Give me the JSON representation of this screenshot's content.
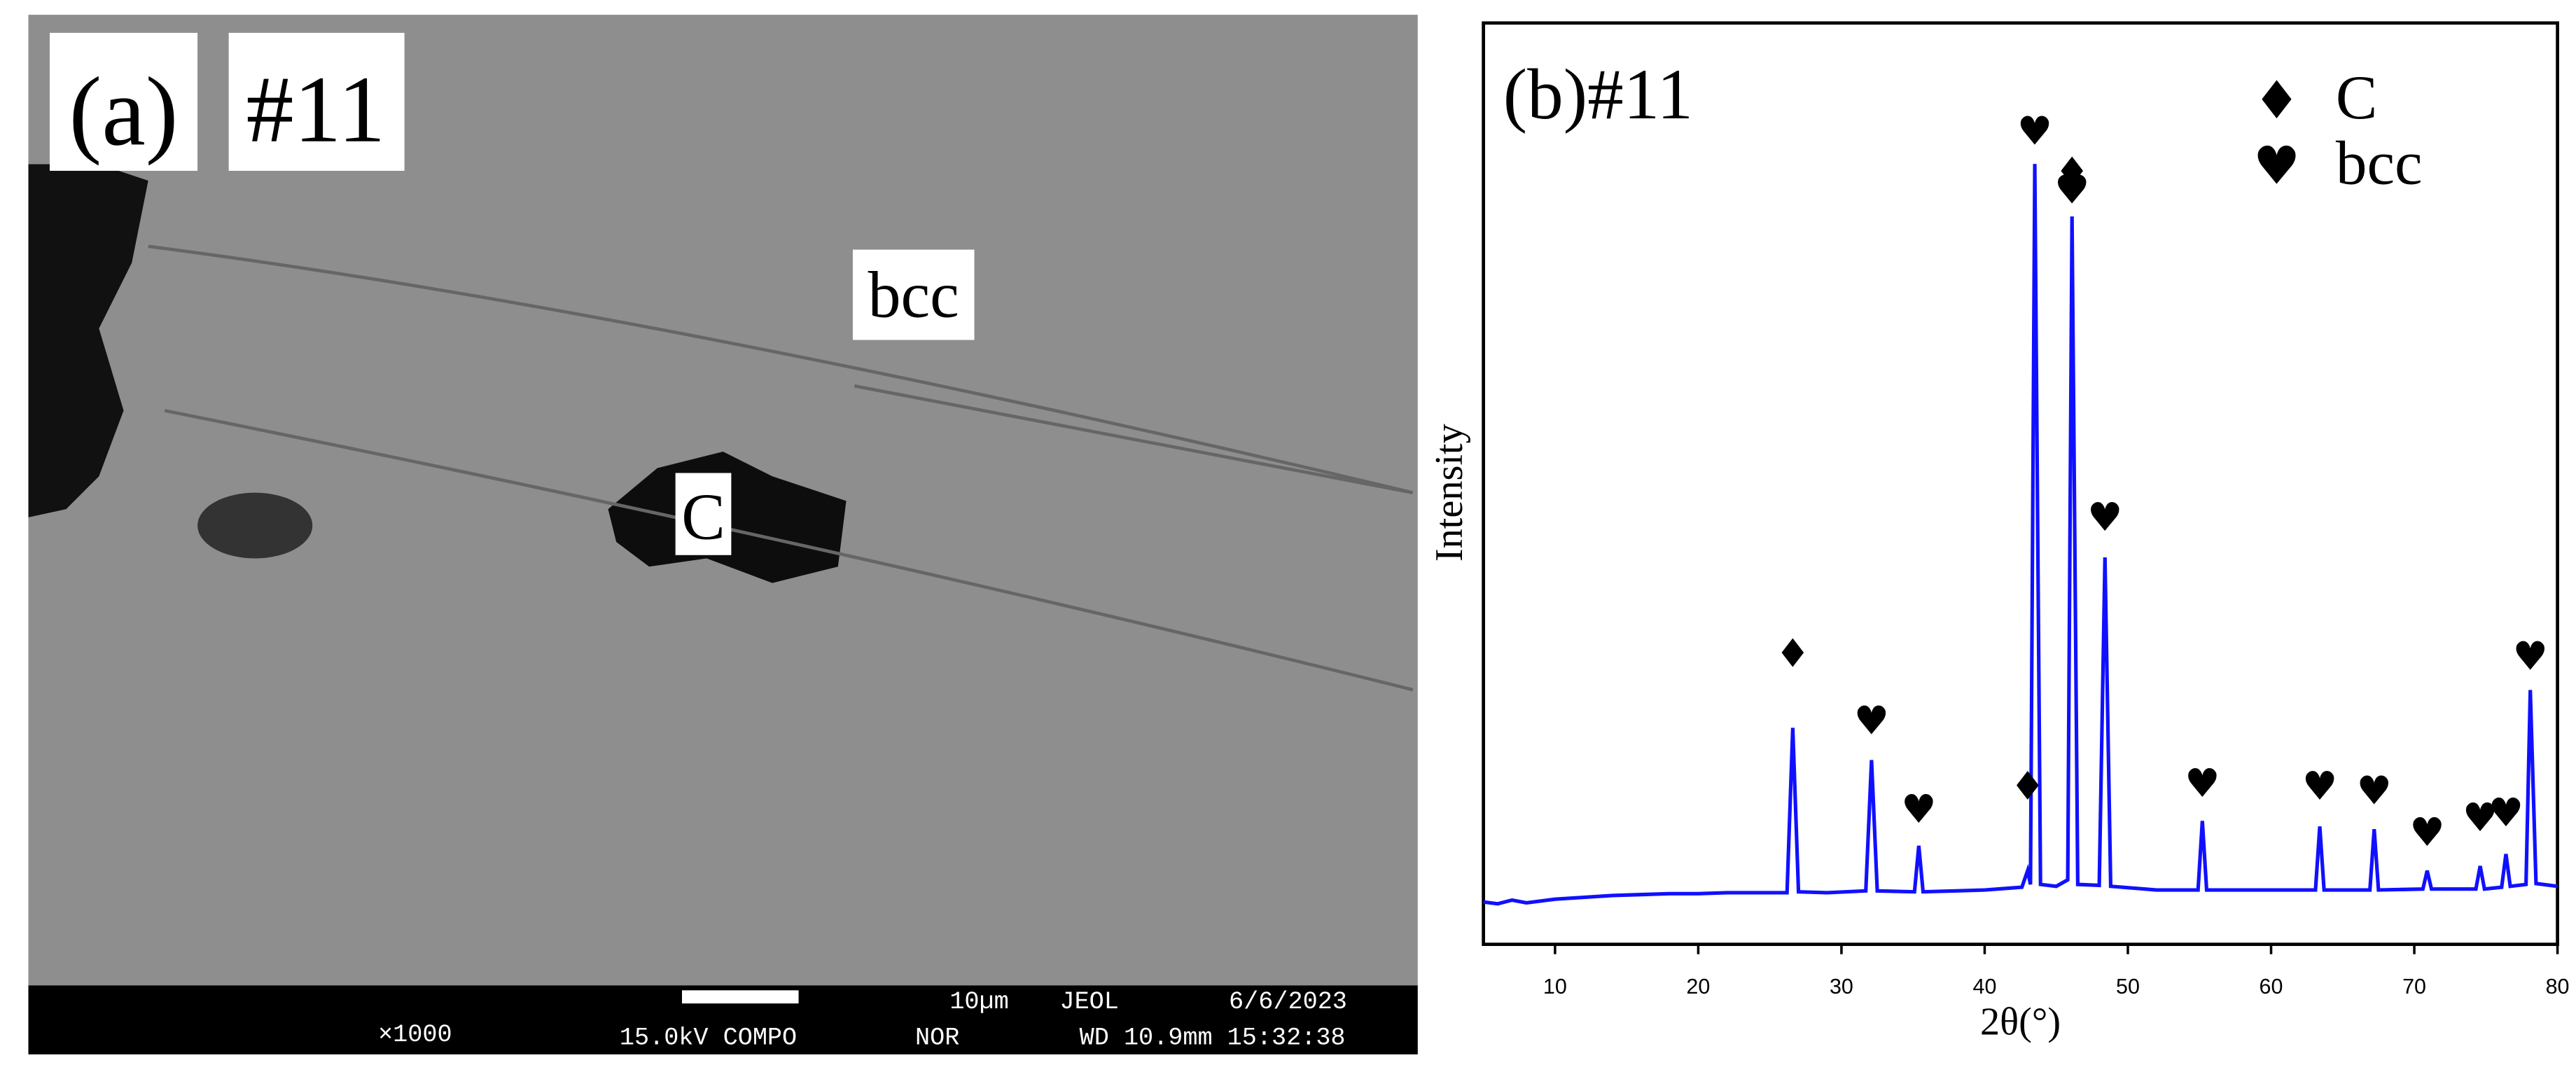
{
  "sem_image": {
    "panel_label": "(a)",
    "sample": "#11",
    "phase_labels": [
      "bcc",
      "C"
    ],
    "info_bar": {
      "scale": "10µm",
      "maker": "JEOL",
      "date": "6/6/2023",
      "magnification": "×1000",
      "voltage_mode": "15.0kV COMPO",
      "mode": "NOR",
      "wd_time": "WD 10.9mm 15:32:38"
    }
  },
  "chart_data": {
    "type": "line",
    "title": "(b)#11",
    "x_label": "2θ(°)",
    "y_label": "Intensity",
    "color": "#1010ff",
    "x": [
      5,
      6,
      7,
      8,
      10,
      12,
      14,
      16,
      18,
      20,
      22,
      24,
      26.2,
      26.6,
      27.0,
      29,
      31.7,
      32.1,
      32.5,
      35.1,
      35.4,
      35.7,
      38,
      40,
      42.6,
      43.0,
      43.2,
      43.5,
      43.9,
      45,
      45.8,
      46.1,
      46.5,
      48.0,
      48.4,
      48.8,
      52,
      54.9,
      55.2,
      55.5,
      59,
      63.1,
      63.4,
      63.7,
      66.9,
      67.2,
      67.5,
      70.6,
      70.9,
      71.2,
      74.3,
      74.6,
      74.9,
      76.1,
      76.4,
      76.7,
      77.8,
      78.1,
      78.5,
      80
    ],
    "values": [
      4.6,
      4.4,
      4.8,
      4.5,
      4.9,
      5.1,
      5.3,
      5.4,
      5.5,
      5.5,
      5.6,
      5.6,
      5.6,
      23.5,
      5.7,
      5.6,
      5.8,
      20,
      5.8,
      5.7,
      10.7,
      5.7,
      5.8,
      5.9,
      6.2,
      8,
      6.5,
      84.7,
      6.5,
      6.3,
      7,
      79,
      6.5,
      6.4,
      42,
      6.3,
      5.9,
      5.9,
      13.4,
      5.9,
      5.9,
      5.9,
      12.8,
      5.9,
      5.9,
      12.5,
      5.9,
      6,
      8,
      6,
      6,
      8.5,
      6,
      6.2,
      9.8,
      6.3,
      6.5,
      27.6,
      6.6,
      6.3
    ],
    "xlim": [
      5,
      80
    ],
    "xticks": [
      10,
      20,
      30,
      40,
      50,
      60,
      70,
      80
    ],
    "ylim": [
      0,
      100
    ],
    "annotations": [
      {
        "x": 26.6,
        "y": 30.1,
        "text": "♦"
      },
      {
        "x": 32.1,
        "y": 22.8,
        "text": "♥"
      },
      {
        "x": 35.4,
        "y": 13.2,
        "text": "♥"
      },
      {
        "x": 43.0,
        "y": 15.7,
        "text": "♦"
      },
      {
        "x": 43.5,
        "y": 86.8,
        "text": "♥"
      },
      {
        "x": 46.1,
        "y": 82.4,
        "text": "♦"
      },
      {
        "x": 46.1,
        "y": 80.4,
        "text": "♥"
      },
      {
        "x": 48.4,
        "y": 44.9,
        "text": "♥"
      },
      {
        "x": 55.2,
        "y": 16,
        "text": "♥"
      },
      {
        "x": 63.4,
        "y": 15.7,
        "text": "♥"
      },
      {
        "x": 67.2,
        "y": 15.2,
        "text": "♥"
      },
      {
        "x": 70.9,
        "y": 10.7,
        "text": "♥"
      },
      {
        "x": 74.6,
        "y": 12.3,
        "text": "♥"
      },
      {
        "x": 76.4,
        "y": 12.8,
        "text": "♥"
      },
      {
        "x": 78.1,
        "y": 29.8,
        "text": "♥"
      }
    ],
    "legend": [
      {
        "symbol": "♦",
        "label": "C"
      },
      {
        "symbol": "♥",
        "label": "bcc"
      }
    ]
  }
}
